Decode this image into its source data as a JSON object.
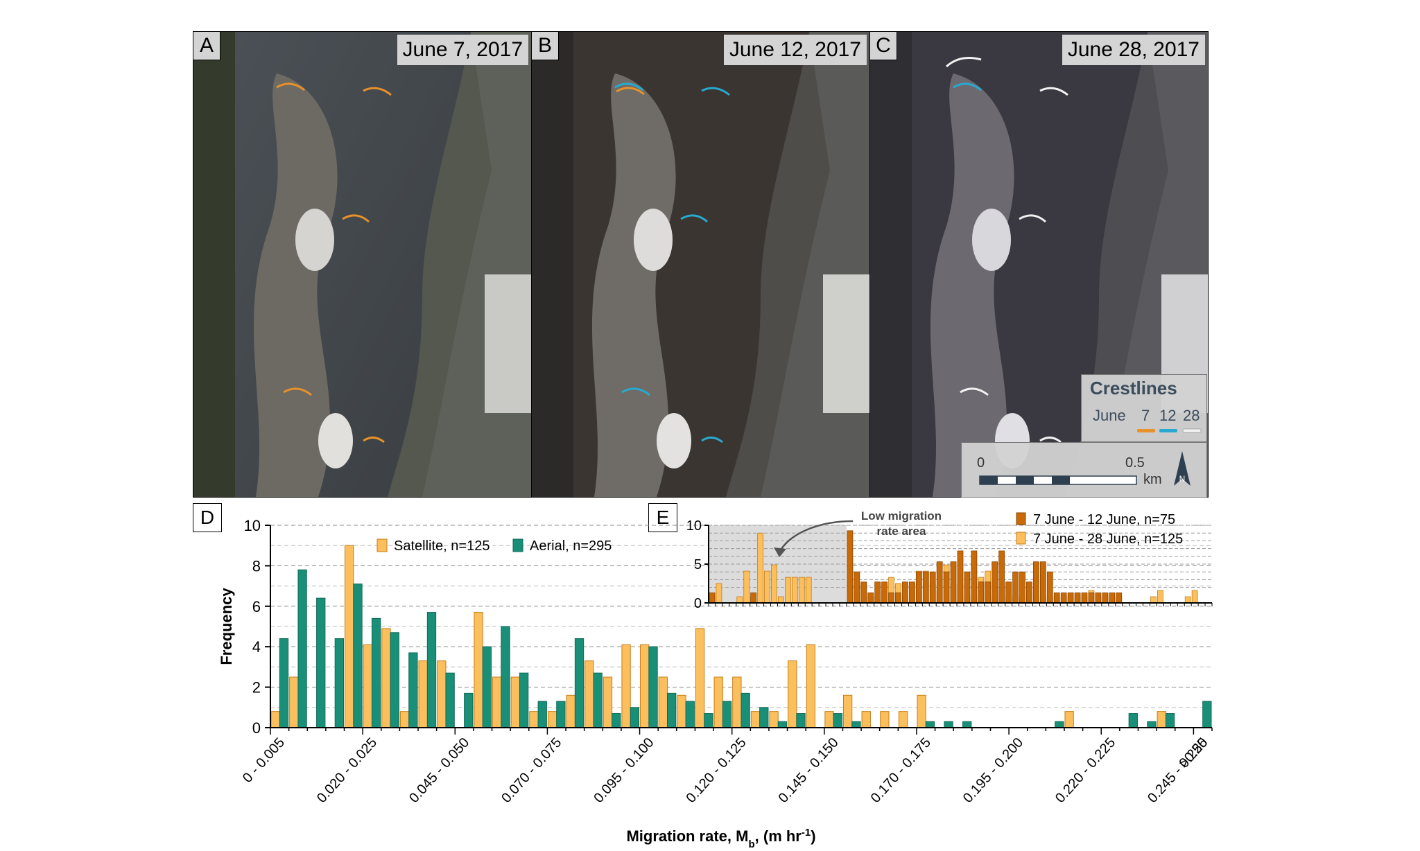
{
  "panels": [
    {
      "letter": "A",
      "date": "June 7, 2017"
    },
    {
      "letter": "B",
      "date": "June 12, 2017"
    },
    {
      "letter": "C",
      "date": "June 28, 2017"
    }
  ],
  "crestlines": {
    "title": "Crestlines",
    "june_label": "June",
    "dates": [
      "7",
      "12",
      "28"
    ],
    "colors": [
      "#e8912a",
      "#29a9cf",
      "#f2f2f2"
    ]
  },
  "scale_bar": {
    "start": "0",
    "end": "0.5",
    "unit": "km",
    "north": "N"
  },
  "chart_data": [
    {
      "panel": "D",
      "type": "bar",
      "xlabel_main": "Migration rate, M",
      "xlabel_sub": "b",
      "xlabel_tail": ", (m hr",
      "xlabel_sup": "-1",
      "xlabel_end": ")",
      "ylabel": "Frequency",
      "ylim": [
        0,
        10
      ],
      "yticks": [
        "0",
        "2",
        "4",
        "6",
        "8",
        "10"
      ],
      "tick_labels": [
        "0 - 0.005",
        "0.020 - 0.025",
        "0.045 - 0.050",
        "0.070 - 0.075",
        "0.095 - 0.100",
        "0.120 - 0.125",
        "0.145 - 0.150",
        "0.170 - 0.175",
        "0.195 - 0.200",
        "0.220 - 0.225",
        "0.245 - 0.250",
        ">0.25"
      ],
      "bin_count": 51,
      "grid": true,
      "legend_position": "top-right",
      "series": [
        {
          "name": "Satellite, n=125",
          "color": "#fbbf5e",
          "values": [
            0.8,
            2.5,
            0,
            0,
            9,
            4.1,
            4.9,
            0.8,
            3.3,
            3.3,
            0,
            5.7,
            2.5,
            2.5,
            0.8,
            0.8,
            1.6,
            3.3,
            2.5,
            4.1,
            4.1,
            2.5,
            1.6,
            4.9,
            2.5,
            2.5,
            0.8,
            0.8,
            3.3,
            4.1,
            0.8,
            1.6,
            0.8,
            0.8,
            0.8,
            1.6,
            0,
            0,
            0,
            0,
            0,
            0,
            0,
            0.8,
            0,
            0,
            0,
            0,
            0.8,
            0,
            0
          ]
        },
        {
          "name": "Aerial, n=295",
          "color": "#1a8f77",
          "values": [
            4.4,
            7.8,
            6.4,
            4.4,
            7.1,
            5.4,
            4.7,
            3.7,
            5.7,
            2.7,
            1.7,
            4.0,
            5.0,
            2.7,
            1.3,
            1.3,
            4.4,
            2.7,
            0.7,
            1.0,
            4.0,
            1.7,
            1.3,
            0.7,
            1.3,
            1.7,
            1.0,
            0.3,
            0.7,
            0,
            0.7,
            0.3,
            0,
            0,
            0,
            0.3,
            0.3,
            0.3,
            0,
            0,
            0,
            0,
            0.3,
            0,
            0,
            0,
            0.7,
            0.3,
            0.7,
            0,
            1.3
          ]
        }
      ]
    },
    {
      "panel": "E",
      "type": "bar",
      "ylim": [
        0,
        10
      ],
      "yticks": [
        "0",
        "5",
        "10"
      ],
      "grid": true,
      "legend_position": "top-right",
      "annotation": [
        "Low migration",
        "rate area"
      ],
      "series": [
        {
          "name": "7 June - 12 June, n=75",
          "color": "#c96a08",
          "values": [
            1.3,
            0,
            0,
            0,
            0,
            0,
            1.3,
            0,
            0,
            0,
            0,
            0,
            0,
            0,
            0,
            0,
            0,
            0,
            0,
            0,
            9.3,
            4,
            2.7,
            1.3,
            2.7,
            2.7,
            1.3,
            1.3,
            2.7,
            2.7,
            4,
            4,
            4,
            5.3,
            4,
            5.3,
            6.7,
            4,
            6.7,
            2.7,
            2.7,
            5.3,
            6.7,
            2.7,
            4,
            4,
            2.7,
            5.3,
            5.3,
            4,
            1.3,
            1.3,
            1.3,
            1.3,
            1.3,
            1.3,
            1.3,
            1.3,
            1.3,
            1.3,
            0,
            0,
            0,
            0,
            0,
            0,
            0,
            0,
            0,
            0,
            0,
            0,
            0
          ]
        },
        {
          "name": "7 June - 28 June, n=125",
          "color": "#fbbf5e",
          "values": [
            0.8,
            2.5,
            0,
            0,
            0.8,
            4.1,
            0.8,
            9,
            4.1,
            4.9,
            0.8,
            3.3,
            3.3,
            3.3,
            3.3,
            0,
            0,
            0,
            0,
            0,
            5.7,
            2.5,
            2.5,
            0.8,
            0.8,
            1.6,
            3.3,
            2.5,
            0.8,
            2.5,
            4.1,
            4.1,
            2.5,
            1.6,
            4.9,
            2.5,
            2.5,
            0.8,
            0.8,
            3.3,
            4.1,
            0.8,
            1.6,
            0.8,
            0.8,
            0.8,
            1.6,
            0.8,
            0.8,
            0.8,
            0.8,
            0.8,
            0.8,
            0.8,
            0.8,
            1.6,
            0.8,
            0.8,
            0.8,
            0.8,
            0,
            0,
            0,
            0,
            0.8,
            1.6,
            0,
            0,
            0,
            0.8,
            1.6,
            0,
            0
          ]
        }
      ]
    }
  ]
}
